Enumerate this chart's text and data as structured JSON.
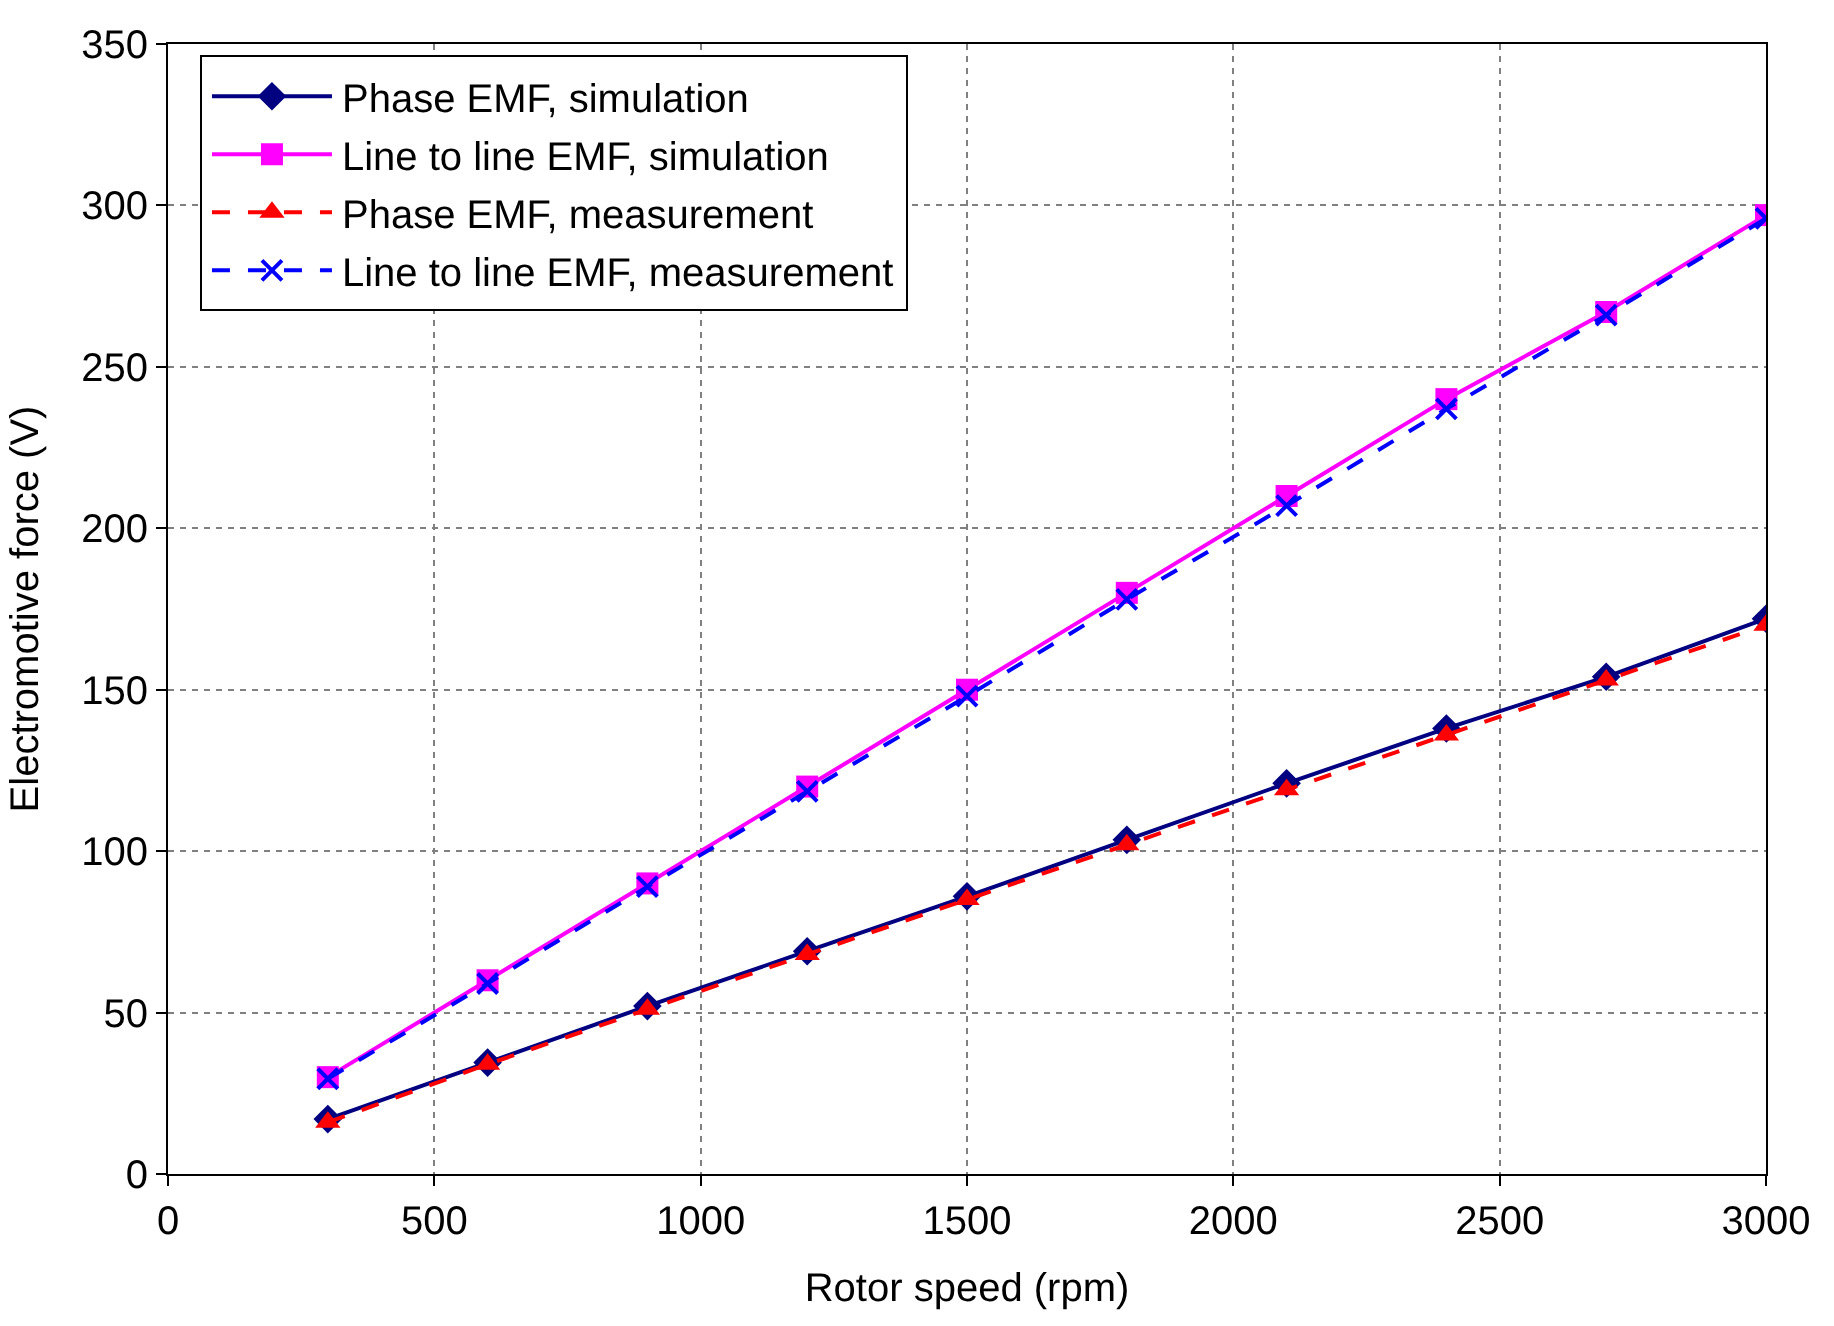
{
  "chart_data": {
    "type": "line",
    "xlabel": "Rotor speed (rpm)",
    "ylabel": "Electromotive force (V)",
    "x": [
      300,
      600,
      900,
      1200,
      1500,
      1800,
      2100,
      2400,
      2700,
      3000
    ],
    "series": [
      {
        "name": "Phase EMF, simulation",
        "color": "#000080",
        "marker": "diamond",
        "line_style": "solid",
        "values": [
          17,
          34.5,
          52,
          69,
          86,
          103.5,
          121,
          138,
          154,
          172
        ]
      },
      {
        "name": "Line to line EMF, simulation",
        "color": "#ff00ff",
        "marker": "square",
        "line_style": "solid",
        "values": [
          30,
          60,
          90,
          120,
          150,
          180,
          210,
          240,
          267,
          297
        ]
      },
      {
        "name": "Phase EMF, measurement",
        "color": "#ff0000",
        "marker": "triangle",
        "line_style": "dashed",
        "values": [
          16,
          34,
          51,
          68,
          85,
          102,
          119,
          136,
          153,
          170
        ]
      },
      {
        "name": "Line to line EMF, measurement",
        "color": "#0000ff",
        "marker": "cross",
        "line_style": "dashed",
        "values": [
          29.5,
          59,
          89,
          118.5,
          148,
          178,
          207,
          237,
          266,
          296
        ]
      }
    ],
    "xlim": [
      0,
      3000
    ],
    "xticks": [
      0,
      500,
      1000,
      1500,
      2000,
      2500,
      3000
    ],
    "ylim": [
      0,
      350
    ],
    "yticks": [
      0,
      50,
      100,
      150,
      200,
      250,
      300,
      350
    ],
    "grid": true,
    "legend": "top left"
  }
}
